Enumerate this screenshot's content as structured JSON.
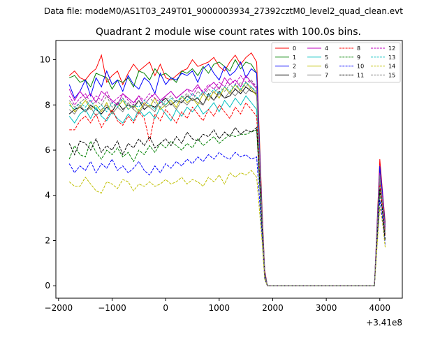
{
  "chart_data": {
    "type": "line",
    "suptitle": "Data file: modeM0/AS1T03_249T01_9000003934_27392cztM0_level2_quad_clean.evt",
    "title": "Quadrant 2 module wise count rates with 100.0s bins.",
    "xlabel": "",
    "ylabel": "",
    "offset_label": "+3.41e8",
    "xlim": [
      -2050,
      4420
    ],
    "ylim": [
      -0.55,
      10.85
    ],
    "xticks": [
      -2000,
      -1000,
      0,
      1000,
      2000,
      3000,
      4000
    ],
    "xtick_labels": [
      "−2000",
      "−1000",
      "0",
      "1000",
      "2000",
      "3000",
      "4000"
    ],
    "yticks": [
      0,
      2,
      4,
      6,
      8,
      10
    ],
    "ytick_labels": [
      "0",
      "2",
      "4",
      "6",
      "8",
      "10"
    ],
    "grid": false,
    "legend_position": "top-right",
    "x": [
      -1800,
      -1700,
      -1600,
      -1500,
      -1400,
      -1300,
      -1200,
      -1100,
      -1000,
      -900,
      -800,
      -700,
      -600,
      -500,
      -400,
      -300,
      -200,
      -100,
      0,
      100,
      200,
      300,
      400,
      500,
      600,
      700,
      800,
      900,
      1000,
      1100,
      1200,
      1300,
      1400,
      1500,
      1600,
      1700,
      1800,
      1850,
      1900,
      2000,
      2100,
      2200,
      2300,
      2400,
      2500,
      2600,
      2700,
      2800,
      2900,
      3000,
      3100,
      3200,
      3300,
      3400,
      3500,
      3600,
      3700,
      3800,
      3900,
      4000,
      4050,
      4100
    ],
    "series": [
      {
        "name": "0",
        "color": "#ff0000",
        "dash": "solid",
        "values": [
          9.3,
          9.5,
          9.2,
          9.1,
          9.4,
          9.6,
          10.2,
          9.0,
          9.3,
          9.5,
          8.9,
          9.4,
          9.8,
          9.5,
          9.7,
          9.9,
          9.3,
          9.8,
          9.2,
          9.1,
          9.3,
          9.5,
          9.6,
          10.0,
          9.7,
          9.8,
          9.9,
          10.1,
          9.7,
          9.5,
          9.9,
          10.2,
          9.8,
          10.1,
          10.3,
          9.9,
          3.5,
          0.7,
          0.0,
          0.0,
          0.0,
          0.0,
          0.0,
          0.0,
          0.0,
          0.0,
          0.0,
          0.0,
          0.0,
          0.0,
          0.0,
          0.0,
          0.0,
          0.0,
          0.0,
          0.0,
          0.0,
          0.0,
          0.0,
          5.6,
          4.2,
          2.8
        ]
      },
      {
        "name": "1",
        "color": "#008000",
        "dash": "solid",
        "values": [
          9.2,
          9.3,
          9.0,
          9.1,
          8.8,
          9.4,
          9.3,
          9.2,
          8.7,
          9.1,
          9.0,
          9.2,
          8.8,
          9.5,
          9.4,
          9.1,
          9.6,
          9.3,
          9.4,
          9.2,
          9.0,
          9.5,
          9.4,
          9.6,
          9.3,
          9.7,
          9.4,
          9.8,
          9.9,
          9.7,
          9.5,
          10.0,
          9.6,
          9.9,
          9.8,
          9.4,
          3.3,
          0.6,
          0.0,
          0.0,
          0.0,
          0.0,
          0.0,
          0.0,
          0.0,
          0.0,
          0.0,
          0.0,
          0.0,
          0.0,
          0.0,
          0.0,
          0.0,
          0.0,
          0.0,
          0.0,
          0.0,
          0.0,
          0.0,
          5.1,
          4.0,
          2.7
        ]
      },
      {
        "name": "2",
        "color": "#0000ff",
        "dash": "solid",
        "values": [
          8.9,
          8.3,
          8.6,
          9.1,
          8.4,
          9.2,
          8.8,
          9.5,
          8.9,
          9.1,
          8.6,
          9.3,
          8.9,
          8.7,
          9.2,
          9.0,
          8.5,
          9.4,
          8.9,
          9.2,
          9.1,
          9.4,
          9.3,
          9.5,
          9.0,
          9.6,
          9.8,
          9.4,
          9.1,
          9.7,
          9.3,
          9.5,
          9.9,
          9.2,
          9.6,
          9.4,
          3.2,
          0.6,
          0.0,
          0.0,
          0.0,
          0.0,
          0.0,
          0.0,
          0.0,
          0.0,
          0.0,
          0.0,
          0.0,
          0.0,
          0.0,
          0.0,
          0.0,
          0.0,
          0.0,
          0.0,
          0.0,
          0.0,
          0.0,
          5.3,
          4.1,
          2.6
        ]
      },
      {
        "name": "3",
        "color": "#000000",
        "dash": "solid",
        "values": [
          7.6,
          7.8,
          7.9,
          7.7,
          8.0,
          7.8,
          7.6,
          7.9,
          7.7,
          8.1,
          7.8,
          8.0,
          7.9,
          8.2,
          7.8,
          8.0,
          7.9,
          8.1,
          8.3,
          8.0,
          8.2,
          8.1,
          8.4,
          8.2,
          8.3,
          8.0,
          8.5,
          8.2,
          8.6,
          8.3,
          8.4,
          8.7,
          8.5,
          8.8,
          8.6,
          8.5,
          3.0,
          0.5,
          0.0,
          0.0,
          0.0,
          0.0,
          0.0,
          0.0,
          0.0,
          0.0,
          0.0,
          0.0,
          0.0,
          0.0,
          0.0,
          0.0,
          0.0,
          0.0,
          0.0,
          0.0,
          0.0,
          0.0,
          0.0,
          4.8,
          3.8,
          2.5
        ]
      },
      {
        "name": "4",
        "color": "#bf00bf",
        "dash": "solid",
        "values": [
          8.7,
          8.2,
          8.6,
          8.3,
          8.5,
          8.1,
          8.6,
          8.4,
          8.2,
          8.0,
          8.5,
          8.3,
          8.1,
          8.4,
          8.0,
          8.3,
          8.5,
          8.2,
          8.4,
          8.6,
          8.3,
          8.5,
          8.7,
          8.6,
          8.9,
          8.5,
          8.8,
          9.0,
          8.7,
          9.2,
          8.9,
          9.1,
          8.8,
          9.3,
          9.0,
          8.7,
          3.1,
          0.5,
          0.0,
          0.0,
          0.0,
          0.0,
          0.0,
          0.0,
          0.0,
          0.0,
          0.0,
          0.0,
          0.0,
          0.0,
          0.0,
          0.0,
          0.0,
          0.0,
          0.0,
          0.0,
          0.0,
          0.0,
          0.0,
          4.9,
          3.9,
          2.5
        ]
      },
      {
        "name": "5",
        "color": "#00bfbf",
        "dash": "solid",
        "values": [
          7.5,
          7.2,
          7.6,
          7.8,
          7.4,
          7.9,
          7.5,
          7.3,
          7.7,
          7.4,
          7.2,
          7.6,
          7.3,
          7.8,
          7.5,
          7.7,
          7.4,
          7.9,
          7.6,
          7.3,
          7.8,
          7.5,
          7.9,
          7.7,
          8.0,
          7.6,
          7.8,
          8.1,
          7.7,
          8.2,
          7.9,
          8.3,
          8.0,
          8.4,
          8.1,
          7.8,
          2.9,
          0.5,
          0.0,
          0.0,
          0.0,
          0.0,
          0.0,
          0.0,
          0.0,
          0.0,
          0.0,
          0.0,
          0.0,
          0.0,
          0.0,
          0.0,
          0.0,
          0.0,
          0.0,
          0.0,
          0.0,
          0.0,
          0.0,
          4.6,
          3.6,
          2.3
        ]
      },
      {
        "name": "6",
        "color": "#bfbf00",
        "dash": "solid",
        "values": [
          8.1,
          7.7,
          7.9,
          8.2,
          7.8,
          8.0,
          7.7,
          8.1,
          7.6,
          7.9,
          8.2,
          7.8,
          8.0,
          7.7,
          8.1,
          7.9,
          8.3,
          7.8,
          8.0,
          8.2,
          7.9,
          8.4,
          8.1,
          8.3,
          8.0,
          8.5,
          8.2,
          8.6,
          8.3,
          8.8,
          8.5,
          8.9,
          8.6,
          9.0,
          8.7,
          8.4,
          3.0,
          0.5,
          0.0,
          0.0,
          0.0,
          0.0,
          0.0,
          0.0,
          0.0,
          0.0,
          0.0,
          0.0,
          0.0,
          0.0,
          0.0,
          0.0,
          0.0,
          0.0,
          0.0,
          0.0,
          0.0,
          0.0,
          0.0,
          4.7,
          3.7,
          2.4
        ]
      },
      {
        "name": "7",
        "color": "#808080",
        "dash": "solid",
        "values": [
          7.8,
          7.6,
          8.0,
          7.7,
          7.9,
          7.5,
          7.8,
          8.0,
          7.6,
          7.9,
          7.7,
          8.1,
          7.8,
          7.6,
          8.0,
          7.9,
          7.7,
          8.2,
          7.9,
          8.1,
          7.8,
          8.2,
          8.0,
          8.3,
          8.1,
          8.0,
          8.4,
          8.2,
          8.5,
          8.3,
          8.6,
          8.4,
          8.7,
          8.5,
          8.8,
          8.5,
          3.0,
          0.5,
          0.0,
          0.0,
          0.0,
          0.0,
          0.0,
          0.0,
          0.0,
          0.0,
          0.0,
          0.0,
          0.0,
          0.0,
          0.0,
          0.0,
          0.0,
          0.0,
          0.0,
          0.0,
          0.0,
          0.0,
          0.0,
          4.8,
          3.7,
          2.4
        ]
      },
      {
        "name": "8",
        "color": "#ff0000",
        "dash": "dashed",
        "values": [
          6.9,
          6.9,
          7.3,
          7.5,
          7.2,
          7.6,
          7.0,
          7.4,
          7.8,
          7.3,
          7.1,
          7.5,
          7.2,
          7.7,
          7.4,
          6.4,
          7.6,
          7.3,
          7.8,
          7.5,
          7.2,
          7.7,
          7.4,
          7.9,
          7.6,
          7.3,
          7.8,
          7.5,
          8.0,
          7.7,
          7.4,
          7.9,
          7.6,
          8.1,
          7.8,
          7.5,
          2.8,
          0.4,
          0.0,
          0.0,
          0.0,
          0.0,
          0.0,
          0.0,
          0.0,
          0.0,
          0.0,
          0.0,
          0.0,
          0.0,
          0.0,
          0.0,
          0.0,
          0.0,
          0.0,
          0.0,
          0.0,
          0.0,
          0.0,
          4.5,
          3.5,
          2.2
        ]
      },
      {
        "name": "9",
        "color": "#008000",
        "dash": "dashed",
        "values": [
          5.6,
          6.2,
          5.8,
          5.7,
          6.4,
          5.9,
          5.6,
          6.0,
          5.8,
          6.1,
          5.7,
          5.9,
          5.5,
          6.0,
          5.8,
          6.2,
          5.9,
          6.3,
          6.1,
          6.4,
          6.2,
          6.0,
          6.3,
          6.1,
          6.5,
          6.2,
          6.4,
          6.6,
          6.3,
          6.5,
          6.7,
          6.6,
          6.7,
          6.7,
          6.8,
          6.9,
          2.6,
          0.4,
          0.0,
          0.0,
          0.0,
          0.0,
          0.0,
          0.0,
          0.0,
          0.0,
          0.0,
          0.0,
          0.0,
          0.0,
          0.0,
          0.0,
          0.0,
          0.0,
          0.0,
          0.0,
          0.0,
          0.0,
          0.0,
          4.2,
          3.3,
          2.0
        ]
      },
      {
        "name": "10",
        "color": "#0000ff",
        "dash": "dashed",
        "values": [
          5.4,
          5.0,
          5.3,
          5.1,
          5.5,
          5.0,
          5.4,
          5.2,
          5.6,
          5.1,
          5.3,
          5.0,
          5.2,
          5.5,
          5.1,
          4.9,
          5.3,
          5.0,
          5.4,
          5.2,
          5.5,
          5.3,
          5.6,
          5.4,
          5.7,
          5.5,
          5.8,
          5.6,
          5.9,
          5.7,
          5.6,
          5.9,
          5.7,
          5.8,
          5.6,
          5.7,
          2.2,
          0.3,
          0.0,
          0.0,
          0.0,
          0.0,
          0.0,
          0.0,
          0.0,
          0.0,
          0.0,
          0.0,
          0.0,
          0.0,
          0.0,
          0.0,
          0.0,
          0.0,
          0.0,
          0.0,
          0.0,
          0.0,
          0.0,
          3.8,
          3.0,
          1.8
        ]
      },
      {
        "name": "11",
        "color": "#000000",
        "dash": "dashed",
        "values": [
          6.3,
          5.8,
          6.4,
          6.3,
          6.0,
          6.5,
          5.9,
          6.2,
          6.0,
          6.4,
          5.8,
          6.3,
          6.1,
          6.5,
          6.2,
          6.6,
          6.1,
          6.3,
          6.5,
          6.2,
          6.6,
          6.3,
          6.8,
          6.5,
          6.4,
          6.7,
          6.6,
          6.9,
          6.5,
          6.8,
          6.6,
          7.0,
          6.7,
          6.9,
          6.8,
          7.0,
          2.7,
          0.4,
          0.0,
          0.0,
          0.0,
          0.0,
          0.0,
          0.0,
          0.0,
          0.0,
          0.0,
          0.0,
          0.0,
          0.0,
          0.0,
          0.0,
          0.0,
          0.0,
          0.0,
          0.0,
          0.0,
          0.0,
          0.0,
          4.3,
          3.3,
          2.0
        ]
      },
      {
        "name": "12",
        "color": "#bf00bf",
        "dash": "dashed",
        "values": [
          8.4,
          8.0,
          8.3,
          8.5,
          8.1,
          8.4,
          8.2,
          8.6,
          8.1,
          8.3,
          8.5,
          8.2,
          8.0,
          8.4,
          8.2,
          8.5,
          8.3,
          8.1,
          8.4,
          8.6,
          8.3,
          8.5,
          8.7,
          8.4,
          8.8,
          8.6,
          8.9,
          8.7,
          9.0,
          8.8,
          9.2,
          8.9,
          9.3,
          9.0,
          9.1,
          8.8,
          3.1,
          0.5,
          0.0,
          0.0,
          0.0,
          0.0,
          0.0,
          0.0,
          0.0,
          0.0,
          0.0,
          0.0,
          0.0,
          0.0,
          0.0,
          0.0,
          0.0,
          0.0,
          0.0,
          0.0,
          0.0,
          0.0,
          0.0,
          5.0,
          3.9,
          2.5
        ]
      },
      {
        "name": "13",
        "color": "#00bfbf",
        "dash": "dashed",
        "values": [
          8.0,
          7.8,
          8.1,
          7.9,
          8.2,
          7.8,
          8.0,
          7.7,
          8.1,
          7.9,
          8.3,
          7.8,
          8.0,
          7.9,
          8.2,
          8.0,
          7.8,
          8.2,
          8.0,
          8.3,
          8.1,
          8.4,
          8.2,
          8.5,
          8.3,
          8.6,
          8.4,
          8.7,
          8.5,
          8.8,
          8.6,
          8.9,
          8.7,
          9.0,
          8.8,
          8.6,
          3.0,
          0.5,
          0.0,
          0.0,
          0.0,
          0.0,
          0.0,
          0.0,
          0.0,
          0.0,
          0.0,
          0.0,
          0.0,
          0.0,
          0.0,
          0.0,
          0.0,
          0.0,
          0.0,
          0.0,
          0.0,
          0.0,
          0.0,
          4.9,
          3.8,
          2.4
        ]
      },
      {
        "name": "14",
        "color": "#bfbf00",
        "dash": "dashed",
        "values": [
          4.6,
          4.4,
          4.4,
          4.8,
          4.5,
          4.2,
          4.1,
          4.6,
          4.5,
          4.3,
          4.7,
          4.6,
          4.2,
          4.5,
          4.4,
          4.6,
          4.4,
          4.5,
          4.7,
          4.5,
          4.6,
          4.8,
          4.5,
          4.7,
          4.6,
          4.4,
          4.8,
          4.6,
          4.9,
          4.5,
          5.0,
          4.8,
          5.0,
          4.9,
          5.1,
          4.8,
          2.0,
          0.3,
          0.0,
          0.0,
          0.0,
          0.0,
          0.0,
          0.0,
          0.0,
          0.0,
          0.0,
          0.0,
          0.0,
          0.0,
          0.0,
          0.0,
          0.0,
          0.0,
          0.0,
          0.0,
          0.0,
          0.0,
          0.0,
          3.5,
          2.8,
          1.7
        ]
      },
      {
        "name": "15",
        "color": "#808080",
        "dash": "dashed",
        "values": [
          8.2,
          7.9,
          8.1,
          8.3,
          7.9,
          8.2,
          8.0,
          8.4,
          7.9,
          8.1,
          8.3,
          8.0,
          7.8,
          8.2,
          8.0,
          8.3,
          8.1,
          7.9,
          8.2,
          8.4,
          8.1,
          8.3,
          8.5,
          8.2,
          8.6,
          8.4,
          8.7,
          8.5,
          8.8,
          8.6,
          8.9,
          8.7,
          9.0,
          8.8,
          9.1,
          8.7,
          3.0,
          0.5,
          0.0,
          0.0,
          0.0,
          0.0,
          0.0,
          0.0,
          0.0,
          0.0,
          0.0,
          0.0,
          0.0,
          0.0,
          0.0,
          0.0,
          0.0,
          0.0,
          0.0,
          0.0,
          0.0,
          0.0,
          0.0,
          4.9,
          3.8,
          2.4
        ]
      }
    ]
  }
}
